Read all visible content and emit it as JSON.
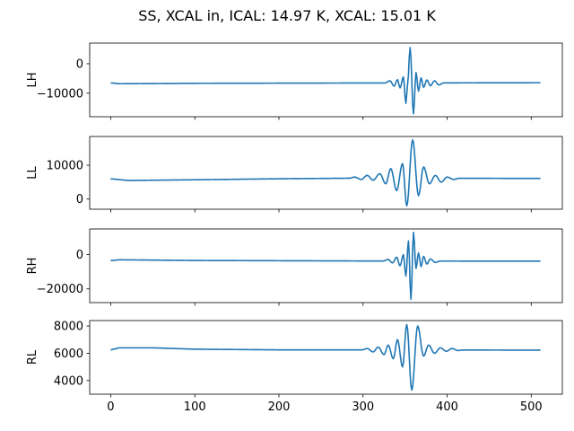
{
  "figure_title": "SS, XCAL in, ICAL: 14.97 K, XCAL: 15.01 K",
  "line_color": "#1f77b4",
  "chart_data": {
    "type": "line",
    "title": "SS, XCAL in, ICAL: 14.97 K, XCAL: 15.01 K",
    "shared_x": true,
    "xlim": [
      -25,
      537
    ],
    "xticks": [
      0,
      100,
      200,
      300,
      400,
      500
    ],
    "n_points": 512,
    "panels": [
      {
        "ylabel": "LH",
        "ylim": [
          -18000,
          7000
        ],
        "yticks": [
          0,
          -10000
        ],
        "series": [
          {
            "baseline": [
              [
                0,
                -6500
              ],
              [
                10,
                -6800
              ],
              [
                100,
                -6650
              ],
              [
                300,
                -6550
              ],
              [
                511,
                -6450
              ]
            ],
            "features": [
              {
                "x": 332,
                "y": -5800
              },
              {
                "x": 337,
                "y": -7600
              },
              {
                "x": 341,
                "y": -5400
              },
              {
                "x": 344,
                "y": -8200
              },
              {
                "x": 348,
                "y": -4500
              },
              {
                "x": 351,
                "y": -13500
              },
              {
                "x": 353,
                "y": -7000
              },
              {
                "x": 356,
                "y": 5500
              },
              {
                "x": 360,
                "y": -17000
              },
              {
                "x": 363,
                "y": -3000
              },
              {
                "x": 366,
                "y": -9300
              },
              {
                "x": 369,
                "y": -4800
              },
              {
                "x": 372,
                "y": -8000
              },
              {
                "x": 376,
                "y": -5500
              },
              {
                "x": 380,
                "y": -7500
              },
              {
                "x": 385,
                "y": -5800
              },
              {
                "x": 390,
                "y": -7200
              }
            ]
          }
        ]
      },
      {
        "ylabel": "LL",
        "ylim": [
          -3000,
          18500
        ],
        "yticks": [
          0,
          10000
        ],
        "series": [
          {
            "baseline": [
              [
                0,
                6000
              ],
              [
                20,
                5500
              ],
              [
                100,
                5700
              ],
              [
                200,
                6000
              ],
              [
                300,
                6200
              ],
              [
                511,
                6100
              ]
            ],
            "features": [
              {
                "x": 290,
                "y": 6500
              },
              {
                "x": 298,
                "y": 5800
              },
              {
                "x": 305,
                "y": 7000
              },
              {
                "x": 312,
                "y": 5600
              },
              {
                "x": 320,
                "y": 7500
              },
              {
                "x": 327,
                "y": 4500
              },
              {
                "x": 333,
                "y": 9000
              },
              {
                "x": 340,
                "y": 2500
              },
              {
                "x": 347,
                "y": 10500
              },
              {
                "x": 352,
                "y": -2000
              },
              {
                "x": 359,
                "y": 17500
              },
              {
                "x": 366,
                "y": 1000
              },
              {
                "x": 372,
                "y": 9500
              },
              {
                "x": 379,
                "y": 4500
              },
              {
                "x": 386,
                "y": 7000
              },
              {
                "x": 393,
                "y": 5000
              },
              {
                "x": 400,
                "y": 6500
              },
              {
                "x": 408,
                "y": 5800
              }
            ]
          }
        ]
      },
      {
        "ylabel": "RH",
        "ylim": [
          -28000,
          15000
        ],
        "yticks": [
          0,
          -20000
        ],
        "series": [
          {
            "baseline": [
              [
                0,
                -3500
              ],
              [
                10,
                -3000
              ],
              [
                100,
                -3400
              ],
              [
                300,
                -3700
              ],
              [
                511,
                -3800
              ]
            ],
            "features": [
              {
                "x": 330,
                "y": -2800
              },
              {
                "x": 335,
                "y": -4800
              },
              {
                "x": 340,
                "y": -1500
              },
              {
                "x": 344,
                "y": -6500
              },
              {
                "x": 348,
                "y": 0
              },
              {
                "x": 351,
                "y": -12500
              },
              {
                "x": 354,
                "y": 8000
              },
              {
                "x": 357,
                "y": -26000
              },
              {
                "x": 360,
                "y": 13000
              },
              {
                "x": 363,
                "y": -8000
              },
              {
                "x": 366,
                "y": 1000
              },
              {
                "x": 369,
                "y": -7000
              },
              {
                "x": 372,
                "y": -1000
              },
              {
                "x": 376,
                "y": -5500
              },
              {
                "x": 380,
                "y": -2500
              },
              {
                "x": 386,
                "y": -4500
              }
            ]
          }
        ]
      },
      {
        "ylabel": "RL",
        "ylim": [
          3000,
          8400
        ],
        "yticks": [
          4000,
          6000,
          8000
        ],
        "series": [
          {
            "baseline": [
              [
                0,
                6250
              ],
              [
                10,
                6400
              ],
              [
                50,
                6400
              ],
              [
                100,
                6300
              ],
              [
                200,
                6250
              ],
              [
                300,
                6250
              ],
              [
                511,
                6230
              ]
            ],
            "features": [
              {
                "x": 305,
                "y": 6350
              },
              {
                "x": 312,
                "y": 6100
              },
              {
                "x": 318,
                "y": 6450
              },
              {
                "x": 325,
                "y": 5900
              },
              {
                "x": 330,
                "y": 6600
              },
              {
                "x": 336,
                "y": 5600
              },
              {
                "x": 341,
                "y": 7000
              },
              {
                "x": 347,
                "y": 5000
              },
              {
                "x": 352,
                "y": 8100
              },
              {
                "x": 358,
                "y": 3300
              },
              {
                "x": 365,
                "y": 8000
              },
              {
                "x": 372,
                "y": 5800
              },
              {
                "x": 378,
                "y": 6600
              },
              {
                "x": 385,
                "y": 6000
              },
              {
                "x": 392,
                "y": 6400
              },
              {
                "x": 399,
                "y": 6150
              },
              {
                "x": 406,
                "y": 6350
              },
              {
                "x": 413,
                "y": 6200
              }
            ]
          }
        ]
      }
    ]
  }
}
